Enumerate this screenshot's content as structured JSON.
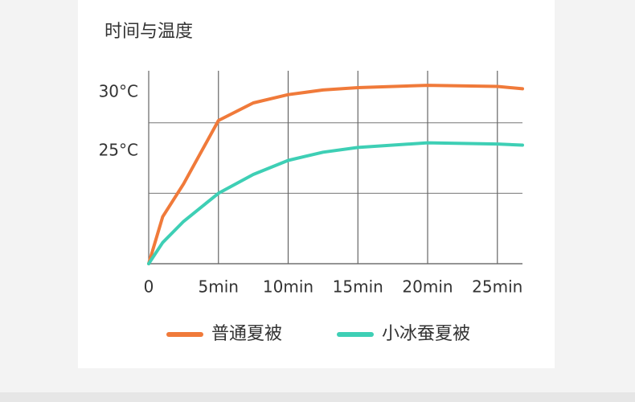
{
  "chart_data": {
    "type": "line",
    "title": "时间与温度",
    "x": [
      0,
      1,
      2.5,
      5,
      7.5,
      10,
      12.5,
      15,
      20,
      25,
      26.8
    ],
    "series": [
      {
        "name": "普通夏被",
        "color": "#f07a3a",
        "values": [
          15.4,
          19.4,
          22.2,
          27.6,
          29.1,
          29.8,
          30.2,
          30.4,
          30.6,
          30.5,
          30.3
        ]
      },
      {
        "name": "小冰蚕夏被",
        "color": "#3ecfb5",
        "values": [
          15.4,
          17.2,
          19,
          21.4,
          23,
          24.2,
          24.9,
          25.3,
          25.7,
          25.6,
          25.5
        ]
      }
    ],
    "xlim": [
      0,
      26.8
    ],
    "xticks": [
      0,
      {
        "value": 5,
        "label": "5min"
      },
      {
        "value": 10,
        "label": "10min"
      },
      {
        "value": 15,
        "label": "15min"
      },
      {
        "value": 20,
        "label": "20min"
      },
      {
        "value": 25,
        "label": "25min"
      }
    ],
    "ylim": [
      15.4,
      31.7
    ],
    "yticks": [
      {
        "value": 30,
        "label": "30°C"
      },
      {
        "value": 25,
        "label": "25°C"
      }
    ],
    "ygrid": [
      27.4,
      21.4
    ],
    "grid": true
  }
}
